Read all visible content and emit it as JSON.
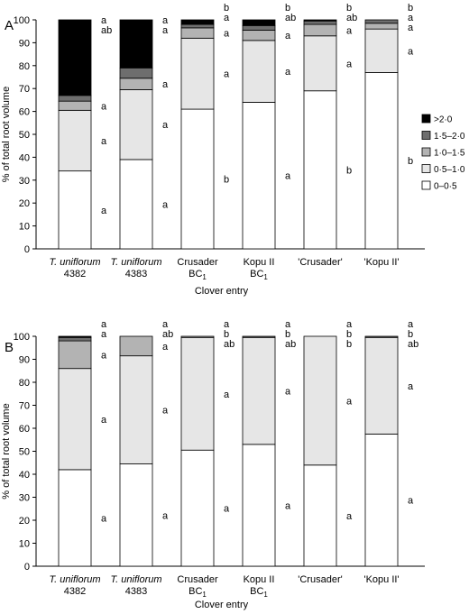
{
  "chart_data": [
    {
      "panel": "A",
      "type": "bar",
      "stacked": true,
      "xlabel": "Clover entry",
      "ylabel": "% of total root volume",
      "ylim": [
        0,
        100
      ],
      "yticks": [
        0,
        10,
        20,
        30,
        40,
        50,
        60,
        70,
        80,
        90,
        100
      ],
      "categories": [
        {
          "line1": "T. uniflorum",
          "line1_italic": true,
          "line2": "4382"
        },
        {
          "line1": "T. uniflorum",
          "line1_italic": true,
          "line2": "4383"
        },
        {
          "line1": "Crusader",
          "line2": "BC",
          "line2_sub": "1"
        },
        {
          "line1": "Kopu II",
          "line2": "BC",
          "line2_sub": "1"
        },
        {
          "line1": "'Crusader'",
          "line2": ""
        },
        {
          "line1": "'Kopu II'",
          "line2": ""
        }
      ],
      "legend": {
        "placement": "right"
      },
      "series": [
        {
          "name": "0–0·5",
          "color": "#ffffff",
          "values": [
            34,
            39,
            61,
            64,
            69,
            77
          ],
          "letters": [
            "a",
            "a",
            "b",
            "a",
            "b",
            "b"
          ]
        },
        {
          "name": "0·5–1·0",
          "color": "#e6e6e6",
          "values": [
            26.5,
            30.5,
            31,
            27,
            24,
            19
          ],
          "letters": [
            "a",
            "a",
            "a",
            "a",
            "a",
            "a"
          ]
        },
        {
          "name": "1·0–1·5",
          "color": "#b3b3b3",
          "values": [
            4,
            5,
            4.5,
            4.5,
            5,
            2.5
          ],
          "letters": [
            "a",
            "a",
            "a",
            "a",
            "a",
            "a"
          ]
        },
        {
          "name": "1·5–2·0",
          "color": "#6e6e6e",
          "values": [
            2.5,
            4.5,
            1.5,
            2,
            1.5,
            1.5
          ],
          "letters": [
            "ab",
            "a",
            "a",
            "ab",
            "ab",
            "a"
          ]
        },
        {
          "name": ">2·0",
          "color": "#000000",
          "values": [
            33,
            21,
            2,
            2.5,
            0.5,
            0
          ],
          "letters": [
            "a",
            "a",
            "b",
            "b",
            "b",
            "b"
          ]
        }
      ]
    },
    {
      "panel": "B",
      "type": "bar",
      "stacked": true,
      "xlabel": "Clover entry",
      "ylabel": "% of total root volume",
      "ylim": [
        0,
        100
      ],
      "yticks": [
        0,
        10,
        20,
        30,
        40,
        50,
        60,
        70,
        80,
        90,
        100
      ],
      "categories": [
        {
          "line1": "T. uniflorum",
          "line1_italic": true,
          "line2": "4382"
        },
        {
          "line1": "T. uniflorum",
          "line1_italic": true,
          "line2": "4383"
        },
        {
          "line1": "Crusader",
          "line2": "BC",
          "line2_sub": "1"
        },
        {
          "line1": "Kopu II",
          "line2": "BC",
          "line2_sub": "1"
        },
        {
          "line1": "'Crusader'",
          "line2": ""
        },
        {
          "line1": "'Kopu II'",
          "line2": ""
        }
      ],
      "series": [
        {
          "name": "0–0·5",
          "color": "#ffffff",
          "values": [
            42,
            44.5,
            50.5,
            53,
            44,
            57.5
          ],
          "letters": [
            "a",
            "a",
            "a",
            "a",
            "a",
            "a"
          ]
        },
        {
          "name": "0·5–1·0",
          "color": "#e6e6e6",
          "values": [
            44,
            47,
            49,
            46.5,
            56,
            42
          ],
          "letters": [
            "a",
            "a",
            "a",
            "a",
            "a",
            "a"
          ]
        },
        {
          "name": "1·0–1·5",
          "color": "#b3b3b3",
          "values": [
            12,
            8.5,
            0.5,
            0,
            0,
            0
          ],
          "letters": [
            "a",
            "a",
            "ab",
            "ab",
            "b",
            "ab"
          ]
        },
        {
          "name": "1·5–2·0",
          "color": "#6e6e6e",
          "values": [
            1.5,
            0,
            0,
            0.5,
            0,
            0.5
          ],
          "letters": [
            "a",
            "ab",
            "b",
            "b",
            "b",
            "b"
          ]
        },
        {
          "name": ">2·0",
          "color": "#000000",
          "values": [
            0.5,
            0,
            0,
            0,
            0,
            0
          ],
          "letters": [
            "a",
            "a",
            "a",
            "a",
            "a",
            "a"
          ]
        }
      ]
    }
  ]
}
